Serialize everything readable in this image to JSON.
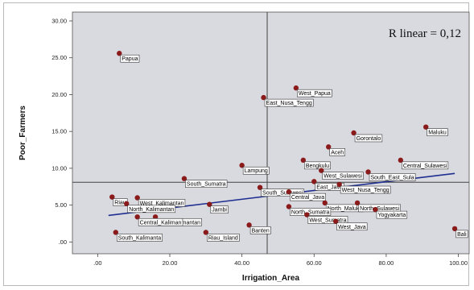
{
  "colors": {
    "plot_background": "#d9d9e0",
    "point": "#8b1a1a",
    "fit_line": "#1f2f8f",
    "reference_line": "#444444"
  },
  "chart_data": {
    "type": "scatter",
    "xlabel": "Irrigation_Area",
    "ylabel": "Poor_Farmers",
    "xlim": [
      -7,
      103
    ],
    "ylim": [
      -1.6,
      31.2
    ],
    "xticks": [
      0,
      20,
      40,
      60,
      80,
      100
    ],
    "yticks": [
      0,
      5,
      10,
      15,
      20,
      25,
      30
    ],
    "xtick_labels": [
      ".00",
      "20.00",
      "40.00",
      "60.00",
      "80.00",
      "100.00"
    ],
    "ytick_labels": [
      ".00",
      "5.00",
      "10.00",
      "15.00",
      "20.00",
      "25.00",
      "30.00"
    ],
    "grid": false,
    "annotation": "R linear = 0,12",
    "reference_lines": {
      "x": 47,
      "y": 8.1
    },
    "fit_line": {
      "x": [
        3,
        99
      ],
      "y": [
        3.6,
        9.3
      ]
    },
    "points": [
      {
        "label": "Papua",
        "x": 6,
        "y": 25.6
      },
      {
        "label": "West_Papua",
        "x": 55,
        "y": 20.9
      },
      {
        "label": "East_Nusa_Tengg",
        "x": 46,
        "y": 19.6
      },
      {
        "label": "Gorontalo",
        "x": 71,
        "y": 14.8
      },
      {
        "label": "Maluku",
        "x": 91,
        "y": 15.6
      },
      {
        "label": "Aceh",
        "x": 64,
        "y": 12.9
      },
      {
        "label": "Bengkulu",
        "x": 57,
        "y": 11.1
      },
      {
        "label": "Central_Sulawesi",
        "x": 84,
        "y": 11.1
      },
      {
        "label": "West_Sulawesi",
        "x": 62,
        "y": 9.7
      },
      {
        "label": "South_East_Sula",
        "x": 75,
        "y": 9.5
      },
      {
        "label": "Lampung",
        "x": 40,
        "y": 10.4
      },
      {
        "label": "East_Java",
        "x": 60,
        "y": 8.2
      },
      {
        "label": "West_Nusa_Tengg",
        "x": 67,
        "y": 7.8
      },
      {
        "label": "South_Sumatra",
        "x": 24,
        "y": 8.6
      },
      {
        "label": "South_Sulawesi",
        "x": 45,
        "y": 7.4
      },
      {
        "label": "Central_Java",
        "x": 53,
        "y": 6.8
      },
      {
        "label": "Riau",
        "x": 4,
        "y": 6.1
      },
      {
        "label": "West_Kalimantan",
        "x": 11,
        "y": 6.0
      },
      {
        "label": "North_Kalimantan",
        "x": 8,
        "y": 5.2
      },
      {
        "label": "Jambi",
        "x": 31,
        "y": 5.1
      },
      {
        "label": "North_Maluku",
        "x": 63,
        "y": 5.3
      },
      {
        "label": "North_Sulawesi",
        "x": 72,
        "y": 5.3
      },
      {
        "label": "North_Sumatra",
        "x": 53,
        "y": 4.8
      },
      {
        "label": "Yogyakarta",
        "x": 77,
        "y": 4.4
      },
      {
        "label": "West_Sumatra",
        "x": 58,
        "y": 3.7
      },
      {
        "label": "East_Kalimantan",
        "x": 16,
        "y": 3.4
      },
      {
        "label": "Central_Kaliman",
        "x": 11,
        "y": 3.4
      },
      {
        "label": "West_Java",
        "x": 66,
        "y": 2.8
      },
      {
        "label": "Bali",
        "x": 99,
        "y": 1.8
      },
      {
        "label": "Banten",
        "x": 42,
        "y": 2.3
      },
      {
        "label": "Riau_Island",
        "x": 30,
        "y": 1.3
      },
      {
        "label": "South_Kalimanta",
        "x": 5,
        "y": 1.3
      }
    ]
  }
}
